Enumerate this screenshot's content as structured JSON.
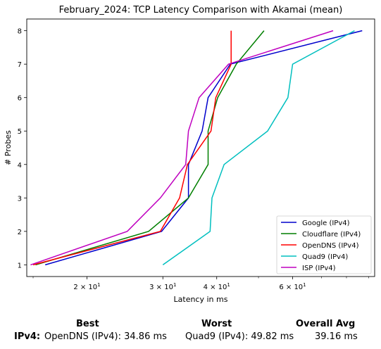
{
  "chart_data": {
    "type": "line",
    "title": "February_2024: TCP Latency Comparison with Akamai (mean)",
    "xlabel": "Latency in ms",
    "ylabel": "# Probes",
    "xscale": "log",
    "xlim": [
      14.5,
      93
    ],
    "ylim": [
      0.65,
      8.35
    ],
    "x_ticks": [
      {
        "value": 20,
        "label": "2 × 10^1"
      },
      {
        "value": 30,
        "label": "3 × 10^1"
      },
      {
        "value": 40,
        "label": "4 × 10^1"
      },
      {
        "value": 60,
        "label": "6 × 10^1"
      }
    ],
    "y_ticks": [
      1,
      2,
      3,
      4,
      5,
      6,
      7,
      8
    ],
    "grid": false,
    "legend_position": "lower-right",
    "series": [
      {
        "name": "Google (IPv4)",
        "color": "#0000cc",
        "x": [
          16.0,
          29.8,
          34.4,
          34.4,
          37.0,
          38.2,
          43.0,
          87.0
        ],
        "y": [
          1,
          2,
          3,
          4,
          5,
          6,
          7,
          8
        ]
      },
      {
        "name": "Cloudflare (IPv4)",
        "color": "#007f00",
        "x": [
          15.2,
          27.8,
          34.4,
          38.2,
          38.2,
          40.2,
          44.4,
          51.5
        ],
        "y": [
          1,
          2,
          3,
          4,
          5,
          6,
          7,
          8
        ]
      },
      {
        "name": "OpenDNS (IPv4)",
        "color": "#ff0000",
        "x": [
          15.0,
          29.6,
          32.8,
          34.2,
          38.8,
          39.8,
          43.2,
          43.2
        ],
        "y": [
          1,
          2,
          3,
          4,
          5,
          6,
          7,
          8
        ]
      },
      {
        "name": "Quad9 (IPv4)",
        "color": "#00bfbf",
        "x": [
          30.0,
          38.6,
          39.0,
          41.6,
          52.5,
          58.5,
          60.0,
          83.5
        ],
        "y": [
          1,
          2,
          3,
          4,
          5,
          6,
          7,
          8
        ]
      },
      {
        "name": "ISP (IPv4)",
        "color": "#bf00bf",
        "x": [
          14.8,
          24.8,
          29.6,
          33.9,
          34.4,
          36.4,
          42.6,
          74.5
        ],
        "y": [
          1,
          2,
          3,
          4,
          5,
          6,
          7,
          8
        ]
      }
    ]
  },
  "summary": {
    "headers": {
      "best": "Best",
      "worst": "Worst",
      "avg": "Overall Avg"
    },
    "row_label": "IPv4:",
    "best": "OpenDNS (IPv4): 34.86 ms",
    "worst": "Quad9 (IPv4): 49.82 ms",
    "avg": "39.16 ms"
  }
}
